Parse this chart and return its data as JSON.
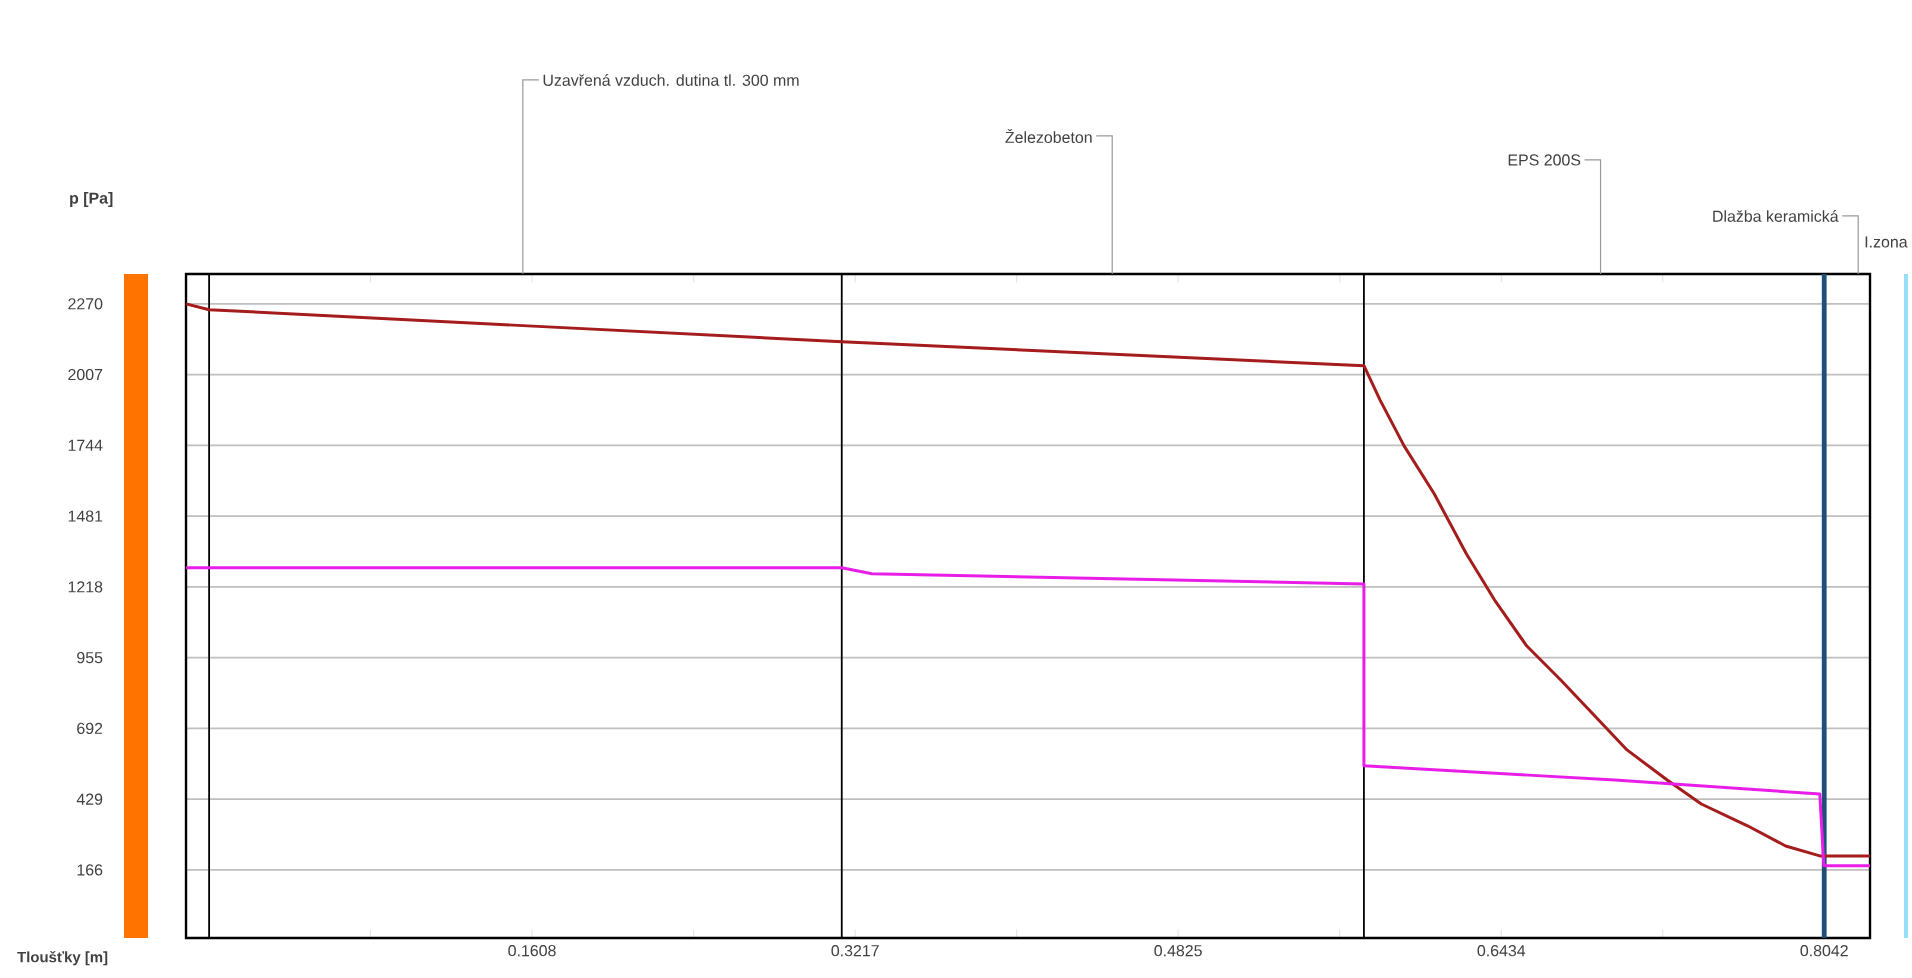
{
  "chart_data": {
    "type": "line",
    "ylabel": "p [Pa]",
    "xlabel": "Tloušťky [m]",
    "xlim": [
      -0.0115,
      0.827
    ],
    "ylim": [
      -87,
      2381
    ],
    "xticks": [
      {
        "value": 0.0804,
        "label": null
      },
      0.1608,
      {
        "value": 0.2413,
        "label": null
      },
      0.3217,
      {
        "value": 0.4021,
        "label": null
      },
      0.4825,
      {
        "value": 0.563,
        "label": null
      },
      0.6434,
      {
        "value": 0.7238,
        "label": null
      },
      0.8042
    ],
    "yticks": [
      166,
      429,
      692,
      955,
      1218,
      1481,
      1744,
      2007,
      2270
    ],
    "grid": "y",
    "marker": "none",
    "line_style": "solid",
    "series": [
      {
        "color": "#a51c1c",
        "x": [
          -0.0115,
          0.0,
          0.315,
          0.575,
          0.583,
          0.595,
          0.61,
          0.626,
          0.64,
          0.656,
          0.673,
          0.69,
          0.706,
          0.726,
          0.743,
          0.766,
          0.785,
          0.802,
          0.827
        ],
        "values": [
          2270,
          2248,
          2129,
          2040,
          1913,
          1742,
          1564,
          1341,
          1170,
          999,
          872,
          738,
          612,
          500,
          411,
          330,
          255,
          218,
          218
        ]
      },
      {
        "color": "#e81ee8",
        "x": [
          -0.0115,
          0.315,
          0.33,
          0.575,
          0.575,
          0.7,
          0.802,
          0.804,
          0.827
        ],
        "values": [
          1289,
          1289,
          1267,
          1229,
          553,
          500,
          448,
          181,
          181
        ]
      }
    ],
    "ref_lines": [
      {
        "axis": "x",
        "value": 0.0,
        "color": "#000000"
      },
      {
        "axis": "x",
        "value": 0.315,
        "color": "#000000"
      },
      {
        "axis": "x",
        "value": 0.575,
        "color": "#000000"
      },
      {
        "axis": "x",
        "value": 0.8042,
        "color": "#1f4e79"
      }
    ],
    "annotations": [
      "Uzavřená vzduch. dutina tl. 300 mm",
      "Železobeton",
      "EPS 200S",
      "Dlažba keramická",
      "I.zona"
    ]
  }
}
